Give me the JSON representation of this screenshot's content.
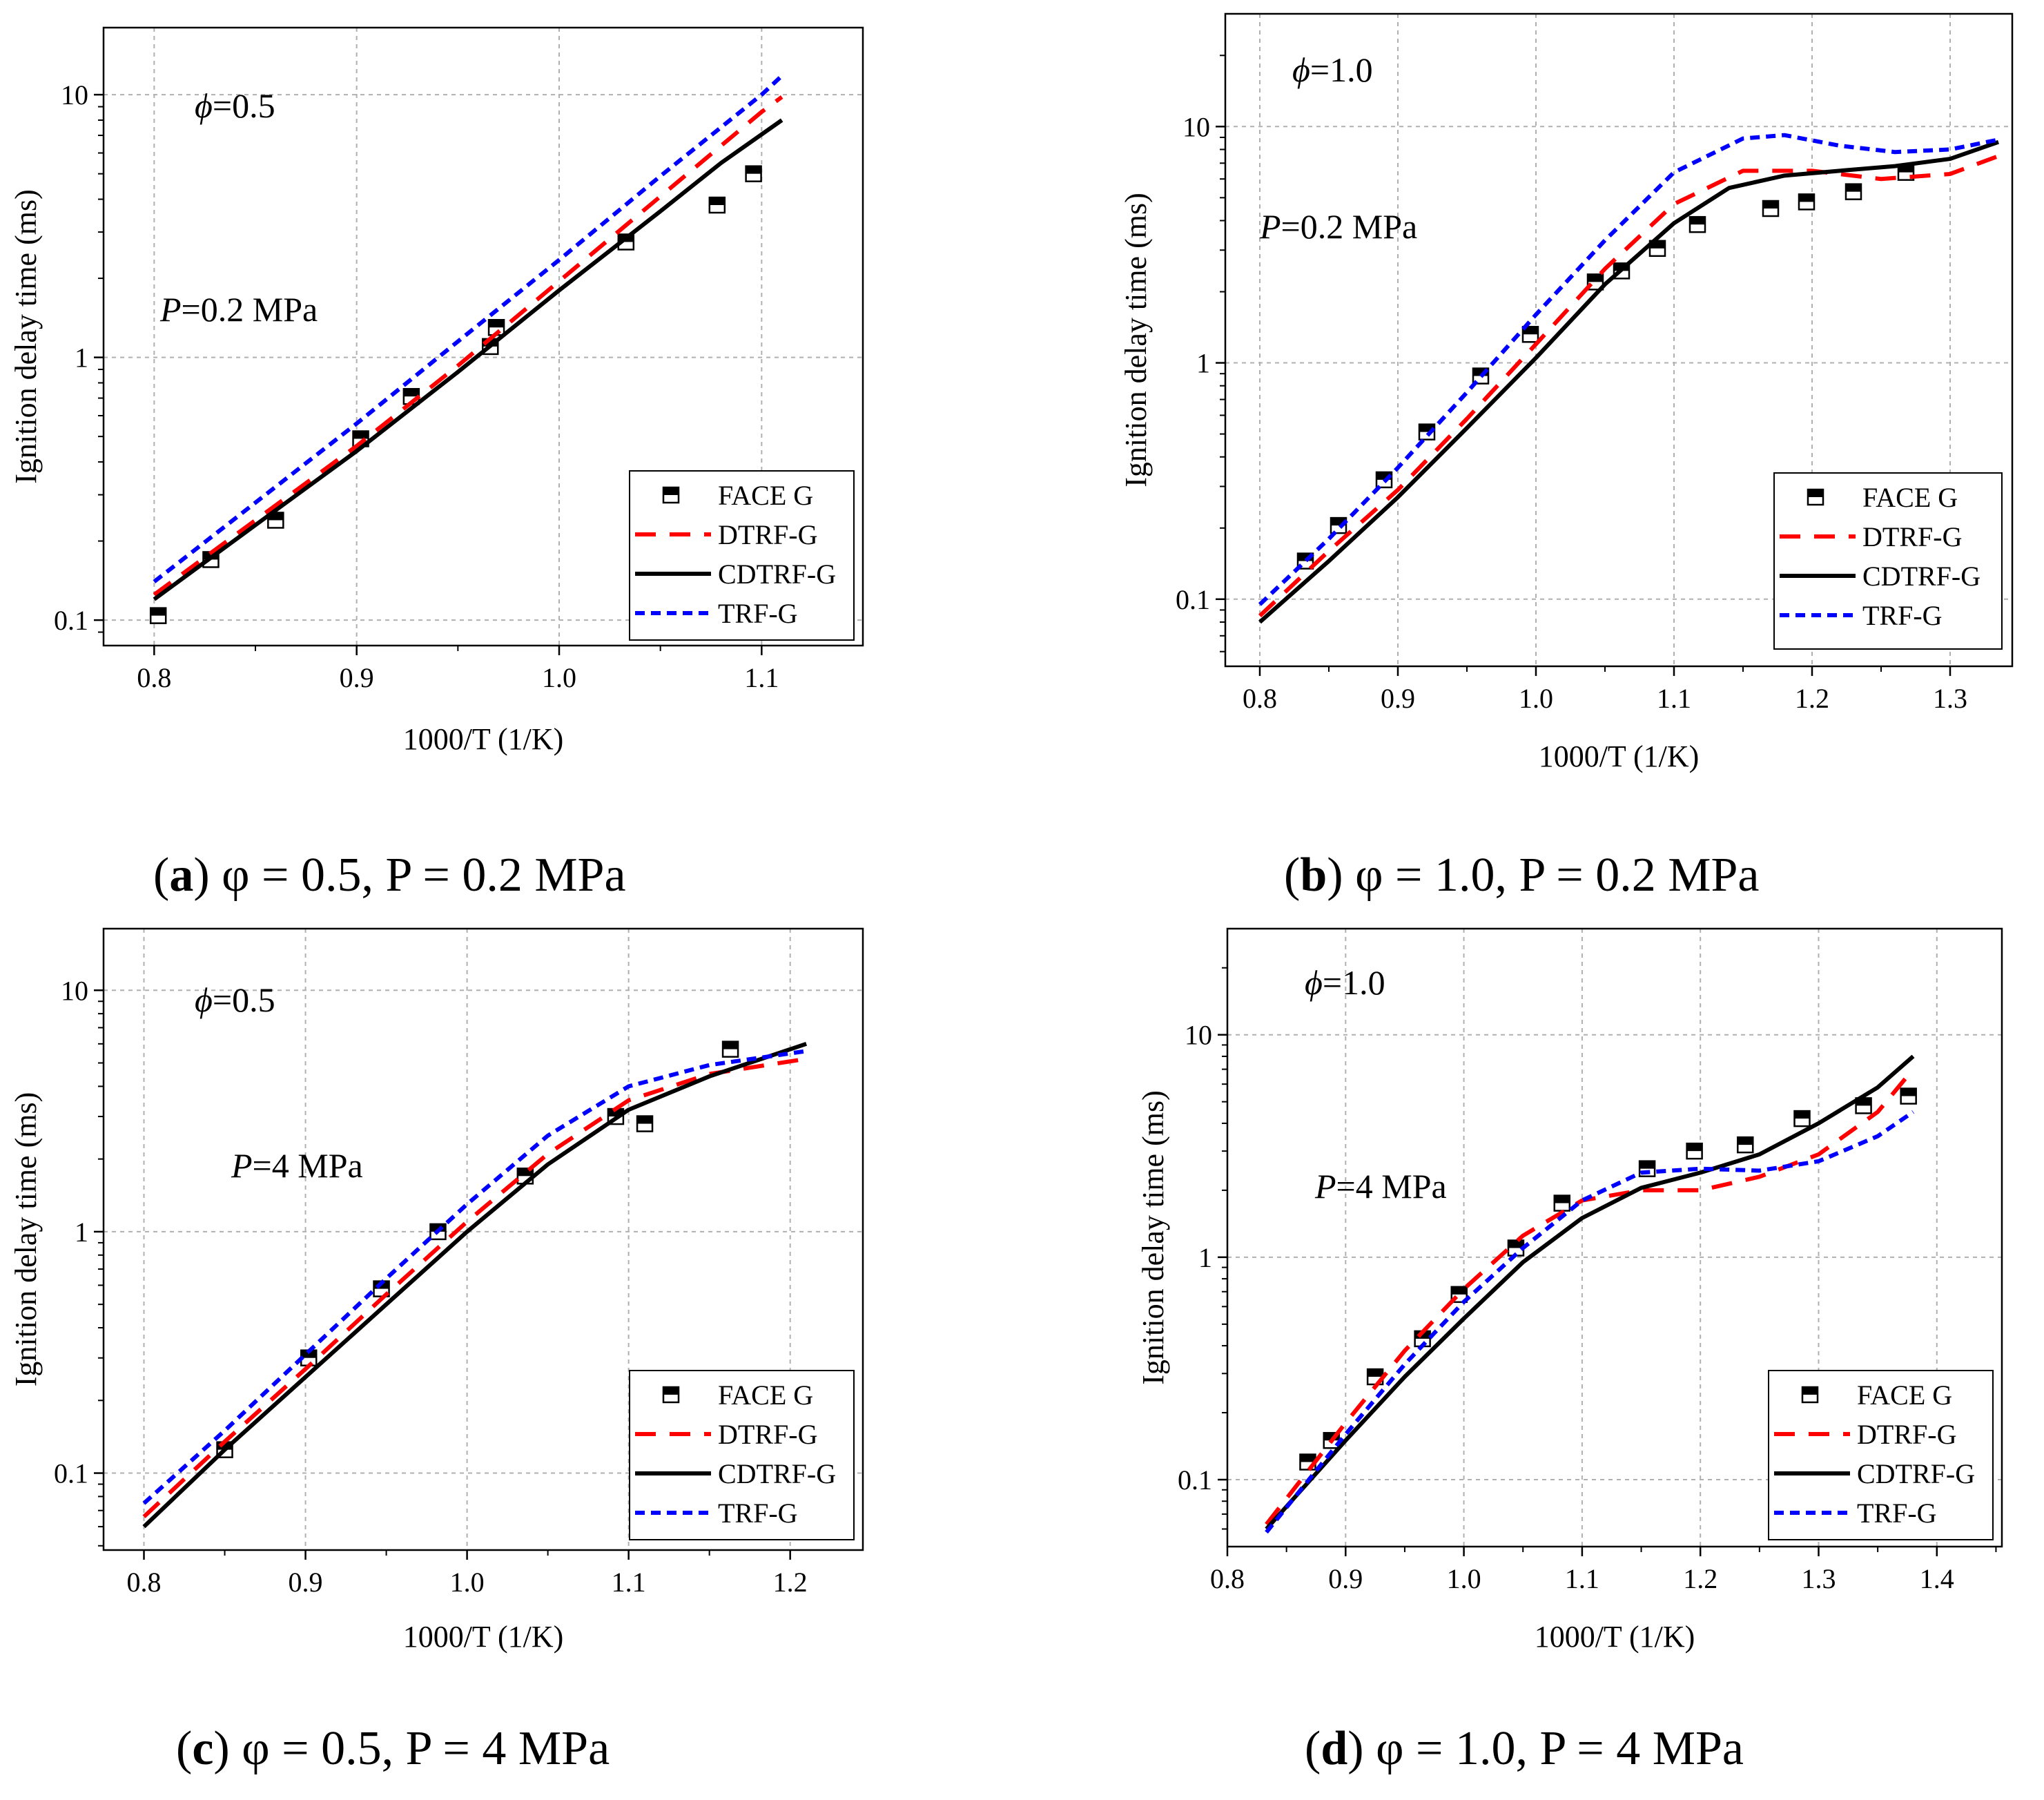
{
  "chart_data": [
    {
      "type": "line",
      "caption": {
        "letter": "a",
        "text": "φ = 0.5, P = 0.2 MPa"
      },
      "xlabel": "1000/T (1/K)",
      "ylabel": "Ignition delay time (ms)",
      "xlim": [
        0.775,
        1.15
      ],
      "ylim": [
        0.08,
        18
      ],
      "yscale": "log",
      "xticks": [
        "0.8",
        "0.9",
        "1.0",
        "1.1"
      ],
      "yticks": [
        "0.1",
        "1",
        "10"
      ],
      "annotations": [
        {
          "symbol": "ϕ",
          "text": "=0.5"
        },
        {
          "symbol": "P",
          "text": "=0.2 MPa"
        }
      ],
      "legend": [
        "FACE G",
        "DTRF-G",
        "CDTRF-G",
        "TRF-G"
      ],
      "series": [
        {
          "name": "FACE G",
          "style": "markers",
          "x": [
            0.802,
            0.828,
            0.86,
            0.902,
            0.927,
            0.966,
            0.969,
            1.033,
            1.078,
            1.096
          ],
          "y": [
            0.104,
            0.17,
            0.24,
            0.49,
            0.71,
            1.1,
            1.3,
            2.75,
            3.8,
            5.0
          ]
        },
        {
          "name": "DTRF-G",
          "style": "dashed",
          "x": [
            0.8,
            0.85,
            0.9,
            0.95,
            1.0,
            1.05,
            1.1,
            1.11
          ],
          "y": [
            0.125,
            0.24,
            0.46,
            0.93,
            1.95,
            4.1,
            8.6,
            9.8
          ]
        },
        {
          "name": "CDTRF-G",
          "style": "solid",
          "x": [
            0.8,
            0.85,
            0.9,
            0.95,
            1.0,
            1.05,
            1.08,
            1.11
          ],
          "y": [
            0.12,
            0.23,
            0.44,
            0.88,
            1.8,
            3.6,
            5.5,
            8.0
          ]
        },
        {
          "name": "TRF-G",
          "style": "dotted",
          "x": [
            0.8,
            0.85,
            0.9,
            0.95,
            1.0,
            1.05,
            1.1,
            1.11
          ],
          "y": [
            0.14,
            0.28,
            0.56,
            1.15,
            2.35,
            4.9,
            10.0,
            11.8
          ]
        }
      ]
    },
    {
      "type": "line",
      "caption": {
        "letter": "b",
        "text": "φ = 1.0, P = 0.2 MPa"
      },
      "xlabel": "1000/T (1/K)",
      "ylabel": "Ignition delay time (ms)",
      "xlim": [
        0.775,
        1.345
      ],
      "ylim": [
        0.052,
        30
      ],
      "yscale": "log",
      "xticks": [
        "0.8",
        "0.9",
        "1.0",
        "1.1",
        "1.2",
        "1.3"
      ],
      "yticks": [
        "0.1",
        "1",
        "10"
      ],
      "annotations": [
        {
          "symbol": "ϕ",
          "text": "=1.0"
        },
        {
          "symbol": "P",
          "text": "=0.2 MPa"
        }
      ],
      "legend": [
        "FACE G",
        "DTRF-G",
        "CDTRF-G",
        "TRF-G"
      ],
      "series": [
        {
          "name": "FACE G",
          "style": "markers",
          "x": [
            0.833,
            0.857,
            0.89,
            0.921,
            0.96,
            0.996,
            1.043,
            1.062,
            1.088,
            1.117,
            1.17,
            1.196,
            1.23,
            1.268
          ],
          "y": [
            0.145,
            0.205,
            0.32,
            0.51,
            0.88,
            1.32,
            2.2,
            2.45,
            3.05,
            3.85,
            4.5,
            4.8,
            5.3,
            6.4
          ]
        },
        {
          "name": "DTRF-G",
          "style": "dashed",
          "x": [
            0.8,
            0.85,
            0.9,
            0.95,
            1.0,
            1.05,
            1.1,
            1.15,
            1.2,
            1.25,
            1.3,
            1.335
          ],
          "y": [
            0.085,
            0.16,
            0.29,
            0.58,
            1.2,
            2.5,
            4.7,
            6.5,
            6.5,
            6.0,
            6.3,
            7.5
          ]
        },
        {
          "name": "CDTRF-G",
          "style": "solid",
          "x": [
            0.8,
            0.85,
            0.9,
            0.95,
            1.0,
            1.05,
            1.1,
            1.14,
            1.18,
            1.22,
            1.26,
            1.3,
            1.335
          ],
          "y": [
            0.08,
            0.145,
            0.27,
            0.53,
            1.05,
            2.15,
            3.9,
            5.5,
            6.2,
            6.5,
            6.8,
            7.3,
            8.6
          ]
        },
        {
          "name": "TRF-G",
          "style": "dotted",
          "x": [
            0.8,
            0.85,
            0.9,
            0.95,
            1.0,
            1.05,
            1.1,
            1.15,
            1.18,
            1.22,
            1.26,
            1.3,
            1.335
          ],
          "y": [
            0.095,
            0.18,
            0.36,
            0.75,
            1.6,
            3.3,
            6.4,
            8.9,
            9.2,
            8.3,
            7.8,
            8.0,
            8.8
          ]
        }
      ]
    },
    {
      "type": "line",
      "caption": {
        "letter": "c",
        "text": "φ = 0.5, P = 4 MPa"
      },
      "xlabel": "1000/T (1/K)",
      "ylabel": "Ignition delay time (ms)",
      "xlim": [
        0.775,
        1.245
      ],
      "ylim": [
        0.048,
        18
      ],
      "yscale": "log",
      "xticks": [
        "0.8",
        "0.9",
        "1.0",
        "1.1",
        "1.2"
      ],
      "yticks": [
        "0.1",
        "1",
        "10"
      ],
      "annotations": [
        {
          "symbol": "ϕ",
          "text": "=0.5"
        },
        {
          "symbol": "P",
          "text": "=4 MPa"
        }
      ],
      "legend": [
        "FACE G",
        "DTRF-G",
        "CDTRF-G",
        "TRF-G"
      ],
      "series": [
        {
          "name": "FACE G",
          "style": "markers",
          "x": [
            0.85,
            0.902,
            0.947,
            0.982,
            1.036,
            1.092,
            1.11,
            1.163
          ],
          "y": [
            0.125,
            0.3,
            0.58,
            1.0,
            1.7,
            3.0,
            2.8,
            5.7
          ]
        },
        {
          "name": "DTRF-G",
          "style": "dashed",
          "x": [
            0.8,
            0.85,
            0.9,
            0.95,
            1.0,
            1.05,
            1.1,
            1.15,
            1.21
          ],
          "y": [
            0.066,
            0.135,
            0.27,
            0.55,
            1.1,
            2.1,
            3.5,
            4.5,
            5.2
          ]
        },
        {
          "name": "CDTRF-G",
          "style": "solid",
          "x": [
            0.8,
            0.85,
            0.9,
            0.95,
            1.0,
            1.05,
            1.1,
            1.15,
            1.21
          ],
          "y": [
            0.06,
            0.125,
            0.25,
            0.5,
            1.0,
            1.9,
            3.2,
            4.4,
            6.0
          ]
        },
        {
          "name": "TRF-G",
          "style": "dotted",
          "x": [
            0.8,
            0.85,
            0.9,
            0.95,
            1.0,
            1.05,
            1.1,
            1.15,
            1.21
          ],
          "y": [
            0.075,
            0.15,
            0.31,
            0.64,
            1.3,
            2.5,
            4.0,
            4.9,
            5.6
          ]
        }
      ]
    },
    {
      "type": "line",
      "caption": {
        "letter": "d",
        "text": "φ = 1.0, P = 4 MPa"
      },
      "xlabel": "1000/T (1/K)",
      "ylabel": "Ignition delay time (ms)",
      "xlim": [
        0.8,
        1.455
      ],
      "ylim": [
        0.05,
        30
      ],
      "yscale": "log",
      "xticks": [
        "0.8",
        "0.9",
        "1.0",
        "1.1",
        "1.2",
        "1.3",
        "1.4"
      ],
      "yticks": [
        "0.1",
        "1",
        "10"
      ],
      "annotations": [
        {
          "symbol": "ϕ",
          "text": "=1.0"
        },
        {
          "symbol": "P",
          "text": "=4 MPa"
        }
      ],
      "legend": [
        "FACE G",
        "DTRF-G",
        "CDTRF-G",
        "TRF-G"
      ],
      "series": [
        {
          "name": "FACE G",
          "style": "markers",
          "x": [
            0.868,
            0.888,
            0.925,
            0.965,
            0.996,
            1.044,
            1.083,
            1.155,
            1.195,
            1.238,
            1.286,
            1.338,
            1.376
          ],
          "y": [
            0.12,
            0.15,
            0.29,
            0.43,
            0.68,
            1.1,
            1.75,
            2.5,
            3.0,
            3.2,
            4.2,
            4.8,
            5.3
          ]
        },
        {
          "name": "DTRF-G",
          "style": "dashed",
          "x": [
            0.833,
            0.9,
            0.95,
            1.0,
            1.05,
            1.1,
            1.15,
            1.2,
            1.25,
            1.3,
            1.35,
            1.38
          ],
          "y": [
            0.063,
            0.18,
            0.38,
            0.72,
            1.25,
            1.8,
            2.0,
            2.0,
            2.3,
            2.9,
            4.5,
            7.0
          ]
        },
        {
          "name": "CDTRF-G",
          "style": "solid",
          "x": [
            0.833,
            0.9,
            0.95,
            1.0,
            1.05,
            1.1,
            1.15,
            1.2,
            1.25,
            1.3,
            1.35,
            1.38
          ],
          "y": [
            0.06,
            0.15,
            0.29,
            0.53,
            0.95,
            1.5,
            2.05,
            2.4,
            2.9,
            4.0,
            5.8,
            8.0
          ]
        },
        {
          "name": "TRF-G",
          "style": "dotted",
          "x": [
            0.833,
            0.9,
            0.95,
            1.0,
            1.05,
            1.1,
            1.15,
            1.2,
            1.25,
            1.3,
            1.35,
            1.38
          ],
          "y": [
            0.058,
            0.16,
            0.33,
            0.63,
            1.1,
            1.8,
            2.4,
            2.5,
            2.45,
            2.7,
            3.5,
            4.5
          ]
        }
      ]
    }
  ],
  "colors": {
    "FACE G": "#000000",
    "DTRF-G": "#ff0000",
    "CDTRF-G": "#000000",
    "TRF-G": "#0000ff",
    "grid": "#b0b0b0"
  }
}
